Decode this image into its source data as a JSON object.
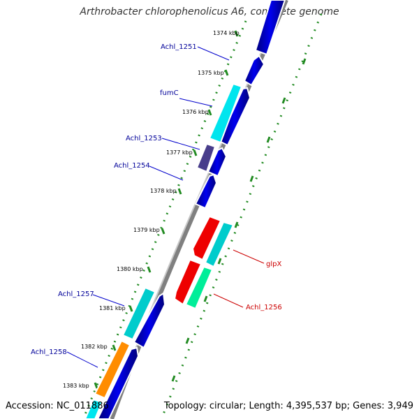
{
  "title": "Arthrobacter chlorophenolicus A6, complete genome",
  "accession": "Accession: NC_011886",
  "topology": "Topology: circular; Length: 4,395,537 bp; Genes: 3,949",
  "ticks": [
    "1374 kbp",
    "1375 kbp",
    "1376 kbp",
    "1377 kbp",
    "1378 kbp",
    "1379 kbp",
    "1380 kbp",
    "1381 kbp",
    "1382 kbp",
    "1383 kbp"
  ],
  "genes": [
    {
      "label": "Achl_1251",
      "color": "#0000ee",
      "label_color": "#000099"
    },
    {
      "label": "fumC",
      "color": "#00e5ee",
      "label_color": "#000099"
    },
    {
      "label": "Achl_1253",
      "color": "#483d8b",
      "label_color": "#000099"
    },
    {
      "label": "Achl_1254",
      "color": "#0000ee",
      "label_color": "#000099"
    },
    {
      "label": "glpX",
      "color": "#ee0000",
      "label_color": "#cc0000"
    },
    {
      "label": "Achl_1256",
      "color": "#00ee99",
      "label_color": "#cc0000"
    },
    {
      "label": "Achl_1257",
      "color": "#00cccc",
      "label_color": "#000099"
    },
    {
      "label": "Achl_1258",
      "color": "#ff8c00",
      "label_color": "#000099"
    }
  ],
  "colors": {
    "backbone": "#808080",
    "tick_marks": "#228b22",
    "forward_gene": "#0000ee"
  }
}
